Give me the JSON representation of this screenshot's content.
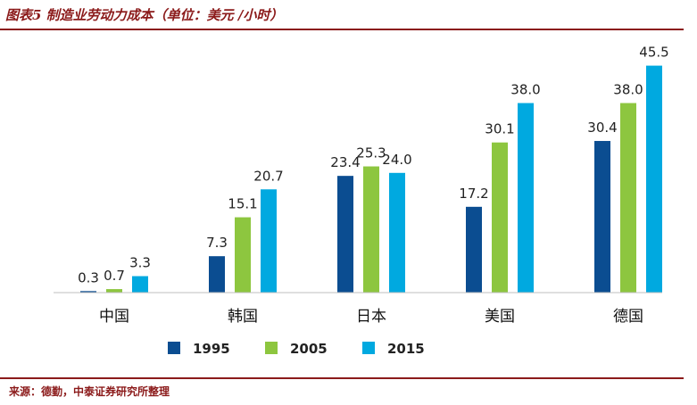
{
  "header": {
    "title": "图表5 制造业劳动力成本（单位：美元 /小时）"
  },
  "footer": {
    "source": "来源：德勤，中泰证券研究所整理"
  },
  "chart_data": {
    "type": "bar",
    "title": "图表5 制造业劳动力成本（单位：美元 /小时）",
    "xlabel": "",
    "ylabel": "",
    "ylim": [
      0,
      50
    ],
    "grid": false,
    "legend": "bottom",
    "categories": [
      "中国",
      "韩国",
      "日本",
      "美国",
      "德国"
    ],
    "series": [
      {
        "name": "1995",
        "color": "#0b4d91",
        "values": [
          0.3,
          7.3,
          23.4,
          17.2,
          30.4
        ],
        "labels": [
          "0.3",
          "7.3",
          "23.4",
          "17.2",
          "30.4"
        ]
      },
      {
        "name": "2005",
        "color": "#8dc63f",
        "values": [
          0.7,
          15.1,
          25.3,
          30.1,
          38.0
        ],
        "labels": [
          "0.7",
          "15.1",
          "25.3",
          "30.1",
          "38.0"
        ]
      },
      {
        "name": "2015",
        "color": "#00a9e0",
        "values": [
          3.3,
          20.7,
          24.0,
          38.0,
          45.5
        ],
        "labels": [
          "3.3",
          "20.7",
          "24.0",
          "38.0",
          "45.5"
        ]
      }
    ]
  }
}
